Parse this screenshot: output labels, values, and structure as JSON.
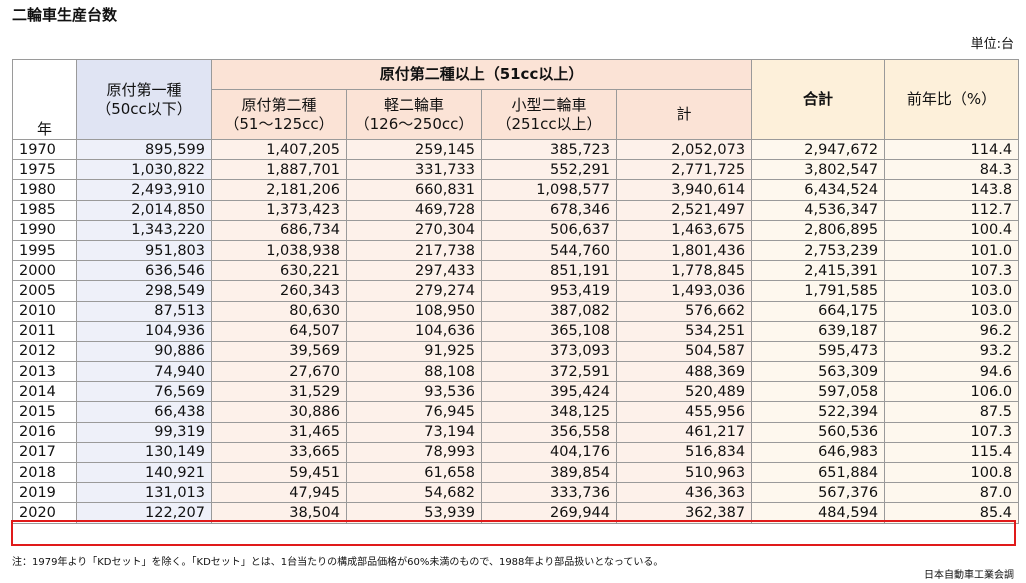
{
  "title": "二輪車生産台数",
  "unit": "単位:台",
  "headers": {
    "year": "年",
    "gen1_line1": "原付第一種",
    "gen1_line2": "（50cc以下）",
    "gen2_group": "原付第二種以上（51cc以上）",
    "gen2_line1": "原付第二種",
    "gen2_line2": "（51～125cc）",
    "kei_line1": "軽二輪車",
    "kei_line2": "（126～250cc）",
    "small_line1": "小型二輪車",
    "small_line2": "（251cc以上）",
    "subtotal": "計",
    "total": "合計",
    "yoy": "前年比（%）"
  },
  "rows": [
    [
      "1970",
      "895,599",
      "1,407,205",
      "259,145",
      "385,723",
      "2,052,073",
      "2,947,672",
      "114.4"
    ],
    [
      "1975",
      "1,030,822",
      "1,887,701",
      "331,733",
      "552,291",
      "2,771,725",
      "3,802,547",
      "84.3"
    ],
    [
      "1980",
      "2,493,910",
      "2,181,206",
      "660,831",
      "1,098,577",
      "3,940,614",
      "6,434,524",
      "143.8"
    ],
    [
      "1985",
      "2,014,850",
      "1,373,423",
      "469,728",
      "678,346",
      "2,521,497",
      "4,536,347",
      "112.7"
    ],
    [
      "1990",
      "1,343,220",
      "686,734",
      "270,304",
      "506,637",
      "1,463,675",
      "2,806,895",
      "100.4"
    ],
    [
      "1995",
      "951,803",
      "1,038,938",
      "217,738",
      "544,760",
      "1,801,436",
      "2,753,239",
      "101.0"
    ],
    [
      "2000",
      "636,546",
      "630,221",
      "297,433",
      "851,191",
      "1,778,845",
      "2,415,391",
      "107.3"
    ],
    [
      "2005",
      "298,549",
      "260,343",
      "279,274",
      "953,419",
      "1,493,036",
      "1,791,585",
      "103.0"
    ],
    [
      "2010",
      "87,513",
      "80,630",
      "108,950",
      "387,082",
      "576,662",
      "664,175",
      "103.0"
    ],
    [
      "2011",
      "104,936",
      "64,507",
      "104,636",
      "365,108",
      "534,251",
      "639,187",
      "96.2"
    ],
    [
      "2012",
      "90,886",
      "39,569",
      "91,925",
      "373,093",
      "504,587",
      "595,473",
      "93.2"
    ],
    [
      "2013",
      "74,940",
      "27,670",
      "88,108",
      "372,591",
      "488,369",
      "563,309",
      "94.6"
    ],
    [
      "2014",
      "76,569",
      "31,529",
      "93,536",
      "395,424",
      "520,489",
      "597,058",
      "106.0"
    ],
    [
      "2015",
      "66,438",
      "30,886",
      "76,945",
      "348,125",
      "455,956",
      "522,394",
      "87.5"
    ],
    [
      "2016",
      "99,319",
      "31,465",
      "73,194",
      "356,558",
      "461,217",
      "560,536",
      "107.3"
    ],
    [
      "2017",
      "130,149",
      "33,665",
      "78,993",
      "404,176",
      "516,834",
      "646,983",
      "115.4"
    ],
    [
      "2018",
      "140,921",
      "59,451",
      "61,658",
      "389,854",
      "510,963",
      "651,884",
      "100.8"
    ],
    [
      "2019",
      "131,013",
      "47,945",
      "54,682",
      "333,736",
      "436,363",
      "567,376",
      "87.0"
    ],
    [
      "2020",
      "122,207",
      "38,504",
      "53,939",
      "269,944",
      "362,387",
      "484,594",
      "85.4"
    ]
  ],
  "note": "注：1979年より「KDセット」を除く。「KDセット」とは、1台当たりの構成部品価格が60%未満のもので、1988年より部品扱いとなっている。",
  "source": "日本自動車工業会調"
}
